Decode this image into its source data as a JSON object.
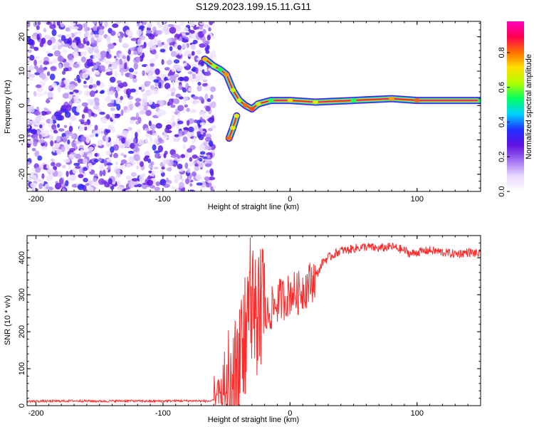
{
  "figure_title": "S129.2023.199.15.11.G11",
  "chart_data": [
    {
      "type": "heatmap",
      "title": "",
      "xlabel": "Height of straight line (km)",
      "ylabel": "Frequency (Hz)",
      "xlim": [
        -207,
        150
      ],
      "ylim": [
        -25,
        24.5
      ],
      "x_ticks": [
        -200,
        -100,
        0,
        100
      ],
      "y_ticks": [
        -20,
        -10,
        0,
        10,
        20
      ],
      "colorbar": {
        "label": "Normalized spectral amplitude",
        "range": [
          0.0,
          0.98
        ],
        "ticks": [
          0.0,
          0.2,
          0.4,
          0.6,
          0.8
        ],
        "colormap": [
          "#ffffff",
          "#e8d8ff",
          "#a070f0",
          "#6010e0",
          "#2030ff",
          "#00d0ff",
          "#00ff60",
          "#b0ff00",
          "#ffe000",
          "#ff7000",
          "#ff0050",
          "#ff00c0"
        ]
      },
      "noise_region": {
        "x_range": [
          -207,
          -60
        ],
        "y_range": [
          -25,
          24.5
        ],
        "amplitude_range": [
          0.05,
          0.35
        ]
      },
      "signal_track": [
        {
          "x": -67,
          "y": 13.5
        },
        {
          "x": -60,
          "y": 11.5
        },
        {
          "x": -55,
          "y": 10.5
        },
        {
          "x": -50,
          "y": 9.0
        },
        {
          "x": -45,
          "y": 4.5
        },
        {
          "x": -40,
          "y": 1.5
        },
        {
          "x": -35,
          "y": 0.0
        },
        {
          "x": -30,
          "y": -1.0
        },
        {
          "x": -25,
          "y": 0.5
        },
        {
          "x": -15,
          "y": 1.5
        },
        {
          "x": 0,
          "y": 1.5
        },
        {
          "x": 20,
          "y": 1.0
        },
        {
          "x": 50,
          "y": 1.5
        },
        {
          "x": 80,
          "y": 2.0
        },
        {
          "x": 100,
          "y": 1.5
        },
        {
          "x": 150,
          "y": 1.5
        }
      ],
      "branch_track": [
        {
          "x": -42,
          "y": -3.0
        },
        {
          "x": -45,
          "y": -6.5
        },
        {
          "x": -48,
          "y": -9.5
        }
      ]
    },
    {
      "type": "line",
      "title": "",
      "xlabel": "Height of straight line (km)",
      "ylabel": "SNR (10 * v/v)",
      "xlim": [
        -207,
        150
      ],
      "ylim": [
        0,
        460
      ],
      "x_ticks": [
        -200,
        -100,
        0,
        100
      ],
      "y_ticks": [
        0,
        100,
        200,
        300,
        400
      ],
      "line_color": "#ff2a2a",
      "series": [
        {
          "x": [
            -207,
            -190,
            -170,
            -150,
            -130,
            -110,
            -90,
            -75,
            -65,
            -55,
            -50,
            -45,
            -42,
            -40,
            -38,
            -36,
            -34,
            -32,
            -30,
            -28,
            -26,
            -24,
            -22,
            -20,
            -18,
            -15,
            -12,
            -10,
            -7,
            -4,
            -1,
            2,
            5,
            8,
            12,
            15,
            18,
            22,
            26,
            30,
            35,
            40,
            45,
            50,
            60,
            70,
            80,
            90,
            95,
            100,
            110,
            120,
            130,
            140,
            150
          ],
          "values": [
            12,
            12,
            13,
            12,
            13,
            12,
            13,
            13,
            12,
            15,
            30,
            40,
            60,
            80,
            120,
            180,
            250,
            300,
            280,
            260,
            230,
            240,
            260,
            250,
            240,
            260,
            270,
            280,
            290,
            290,
            300,
            310,
            300,
            310,
            320,
            330,
            340,
            360,
            390,
            400,
            410,
            420,
            420,
            425,
            430,
            425,
            430,
            420,
            410,
            415,
            420,
            415,
            410,
            415,
            410
          ]
        }
      ]
    }
  ]
}
